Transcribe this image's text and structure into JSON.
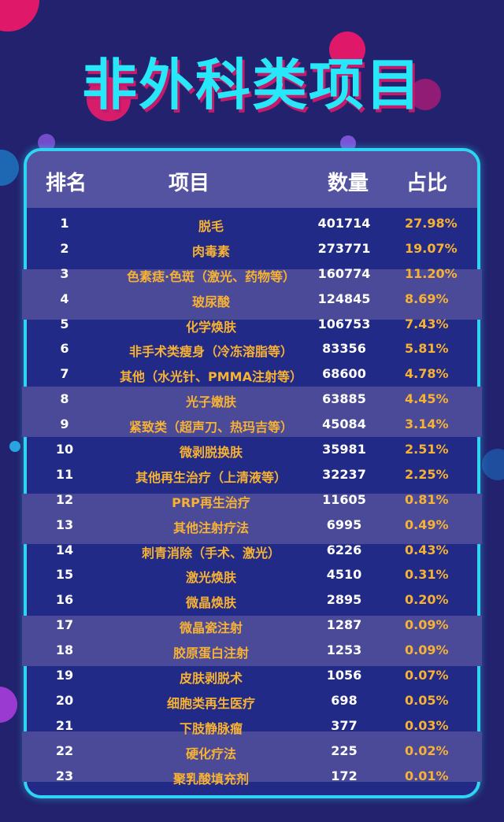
{
  "title": "非外科类项目",
  "headers": {
    "rank": "排名",
    "name": "项目",
    "count": "数量",
    "pct": "占比"
  },
  "rows": [
    {
      "rank": "1",
      "name": "脱毛",
      "count": "401714",
      "pct": "27.98%"
    },
    {
      "rank": "2",
      "name": "肉毒素",
      "count": "273771",
      "pct": "19.07%"
    },
    {
      "rank": "3",
      "name": "色素痣·色斑（激光、药物等）",
      "count": "160774",
      "pct": "11.20%"
    },
    {
      "rank": "4",
      "name": "玻尿酸",
      "count": "124845",
      "pct": "8.69%"
    },
    {
      "rank": "5",
      "name": "化学焕肤",
      "count": "106753",
      "pct": "7.43%"
    },
    {
      "rank": "6",
      "name": "非手术类瘦身（冷冻溶脂等）",
      "count": "83356",
      "pct": "5.81%"
    },
    {
      "rank": "7",
      "name": "其他（水光针、PMMA注射等）",
      "count": "68600",
      "pct": "4.78%"
    },
    {
      "rank": "8",
      "name": "光子嫩肤",
      "count": "63885",
      "pct": "4.45%"
    },
    {
      "rank": "9",
      "name": "紧致类（超声刀、热玛吉等）",
      "count": "45084",
      "pct": "3.14%"
    },
    {
      "rank": "10",
      "name": "微剥脱换肤",
      "count": "35981",
      "pct": "2.51%"
    },
    {
      "rank": "11",
      "name": "其他再生治疗（上清液等）",
      "count": "32237",
      "pct": "2.25%"
    },
    {
      "rank": "12",
      "name": "PRP再生治疗",
      "count": "11605",
      "pct": "0.81%"
    },
    {
      "rank": "13",
      "name": "其他注射疗法",
      "count": "6995",
      "pct": "0.49%"
    },
    {
      "rank": "14",
      "name": "刺青消除（手术、激光）",
      "count": "6226",
      "pct": "0.43%"
    },
    {
      "rank": "15",
      "name": "激光焕肤",
      "count": "4510",
      "pct": "0.31%"
    },
    {
      "rank": "16",
      "name": "微晶焕肤",
      "count": "2895",
      "pct": "0.20%"
    },
    {
      "rank": "17",
      "name": "微晶瓷注射",
      "count": "1287",
      "pct": "0.09%"
    },
    {
      "rank": "18",
      "name": "胶原蛋白注射",
      "count": "1253",
      "pct": "0.09%"
    },
    {
      "rank": "19",
      "name": "皮肤剥脱术",
      "count": "1056",
      "pct": "0.07%"
    },
    {
      "rank": "20",
      "name": "细胞类再生医疗",
      "count": "698",
      "pct": "0.05%"
    },
    {
      "rank": "21",
      "name": "下肢静脉瘤",
      "count": "377",
      "pct": "0.03%"
    },
    {
      "rank": "22",
      "name": "硬化疗法",
      "count": "225",
      "pct": "0.02%"
    },
    {
      "rank": "23",
      "name": "聚乳酸填充剂",
      "count": "172",
      "pct": "0.01%"
    }
  ]
}
